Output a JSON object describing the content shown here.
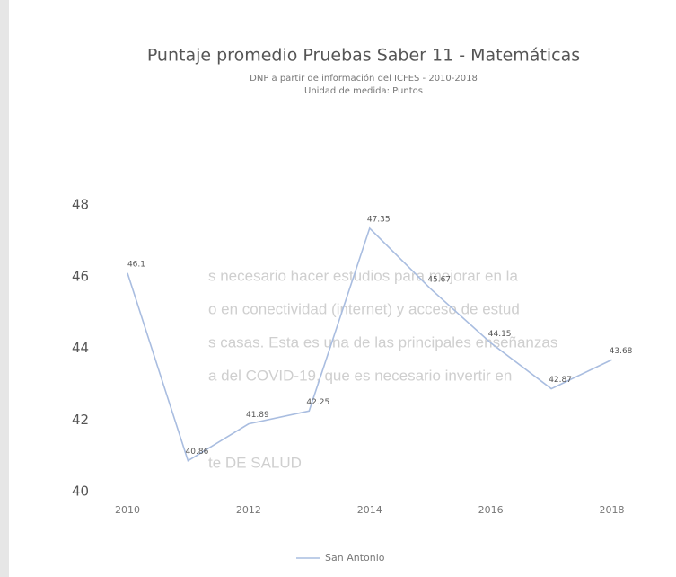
{
  "chart_data": {
    "type": "line",
    "title": "Puntaje promedio Pruebas Saber 11 - Matemáticas",
    "subtitle": [
      "DNP a partir de información del ICFES - 2010-2018",
      "Unidad de medida: Puntos"
    ],
    "x": [
      2010,
      2011,
      2012,
      2013,
      2014,
      2015,
      2016,
      2017,
      2018
    ],
    "series": [
      {
        "name": "San Antonio",
        "color": "#a9bde0",
        "values": [
          46.1,
          40.86,
          41.89,
          42.25,
          47.35,
          45.67,
          44.15,
          42.87,
          43.68
        ]
      }
    ],
    "xlim": [
      2009.6,
      2018.6
    ],
    "xticks": [
      2010,
      2012,
      2014,
      2016,
      2018
    ],
    "ylim": [
      40,
      48
    ],
    "yticks": [
      40,
      42,
      44,
      46,
      48
    ],
    "grid": false,
    "legend": "bottom"
  },
  "background_text": [
    "s necesario hacer estudios para mejorar en la",
    "o en conectividad (internet) y acceso de estud",
    "s casas. Esta es una de las principales enseñanzas",
    "a del COVID-19, que es necesario invertir en",
    "te DE SALUD"
  ]
}
